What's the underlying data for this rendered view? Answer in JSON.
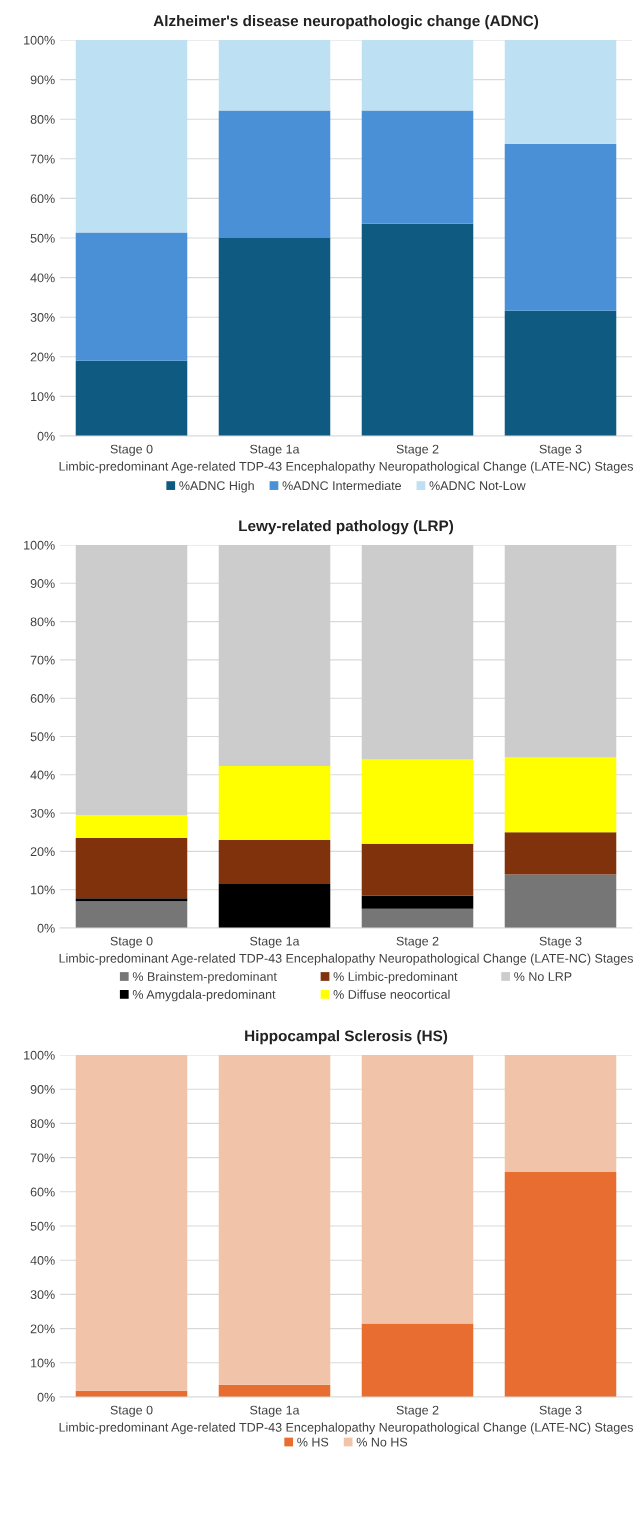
{
  "chart_data": [
    {
      "type": "bar",
      "stacked": true,
      "title": "Alzheimer's disease neuropathologic change (ADNC)",
      "xlabel": "Limbic-predominant Age-related TDP-43 Encephalopathy Neuropathological Change (LATE-NC) Stages",
      "categories": [
        "Stage 0",
        "Stage 1a",
        "Stage 2",
        "Stage 3"
      ],
      "series": [
        {
          "name": "%ADNC High",
          "color": "#0e5a80",
          "values": [
            19,
            50,
            53.6,
            31.6
          ]
        },
        {
          "name": "%ADNC Intermediate",
          "color": "#4a90d6",
          "values": [
            32.4,
            32.2,
            28.6,
            42.2
          ]
        },
        {
          "name": "%ADNC Not-Low",
          "color": "#bde0f2",
          "values": [
            48.6,
            17.8,
            17.8,
            26.2
          ]
        }
      ],
      "ylim": [
        0,
        100
      ],
      "yticks": [
        {
          "value": 0,
          "label": "0%"
        },
        {
          "value": 10,
          "label": "10%"
        },
        {
          "value": 20,
          "label": "20%"
        },
        {
          "value": 30,
          "label": "30%"
        },
        {
          "value": 40,
          "label": "40%"
        },
        {
          "value": 50,
          "label": "50%"
        },
        {
          "value": 60,
          "label": "60%"
        },
        {
          "value": 70,
          "label": "70%"
        },
        {
          "value": 80,
          "label": "80%"
        },
        {
          "value": 90,
          "label": "90%"
        },
        {
          "value": 100,
          "label": "100%"
        }
      ],
      "grid": "y",
      "legend": "bottom"
    },
    {
      "type": "bar",
      "stacked": true,
      "title": "Lewy-related pathology (LRP)",
      "xlabel": "Limbic-predominant Age-related TDP-43 Encephalopathy Neuropathological Change (LATE-NC) Stages",
      "categories": [
        "Stage 0",
        "Stage 1a",
        "Stage 2",
        "Stage 3"
      ],
      "series": [
        {
          "name": "% Brainstem-predominant",
          "color": "#767676",
          "values": [
            7,
            0,
            5,
            14
          ]
        },
        {
          "name": "% Amygdala-predominant",
          "color": "#000000",
          "values": [
            0.8,
            11.5,
            3.5,
            0
          ]
        },
        {
          "name": "% Limbic-predominant",
          "color": "#7f320c",
          "values": [
            15.7,
            11.5,
            13.5,
            11
          ]
        },
        {
          "name": "% Diffuse neocortical",
          "color": "#ffff00",
          "values": [
            6,
            19.3,
            22,
            19.5
          ]
        },
        {
          "name": "% No LRP",
          "color": "#cccccc",
          "values": [
            70.5,
            57.7,
            56,
            55.5
          ]
        }
      ],
      "ylim": [
        0,
        100
      ],
      "yticks": [
        {
          "value": 0,
          "label": "0%"
        },
        {
          "value": 10,
          "label": "10%"
        },
        {
          "value": 20,
          "label": "20%"
        },
        {
          "value": 30,
          "label": "30%"
        },
        {
          "value": 40,
          "label": "40%"
        },
        {
          "value": 50,
          "label": "50%"
        },
        {
          "value": 60,
          "label": "60%"
        },
        {
          "value": 70,
          "label": "70%"
        },
        {
          "value": 80,
          "label": "80%"
        },
        {
          "value": 90,
          "label": "90%"
        },
        {
          "value": 100,
          "label": "100%"
        }
      ],
      "grid": "y",
      "legend": "bottom"
    },
    {
      "type": "bar",
      "stacked": true,
      "title": "Hippocampal Sclerosis (HS)",
      "xlabel": "Limbic-predominant Age-related TDP-43 Encephalopathy Neuropathological Change (LATE-NC) Stages",
      "categories": [
        "Stage 0",
        "Stage 1a",
        "Stage 2",
        "Stage 3"
      ],
      "series": [
        {
          "name": "% HS",
          "color": "#e76e30",
          "values": [
            1.8,
            3.6,
            21.5,
            65.8
          ]
        },
        {
          "name": "% No HS",
          "color": "#f1c3a8",
          "values": [
            98.2,
            96.4,
            78.5,
            34.2
          ]
        }
      ],
      "ylim": [
        0,
        100
      ],
      "yticks": [
        {
          "value": 0,
          "label": "0%"
        },
        {
          "value": 10,
          "label": "10%"
        },
        {
          "value": 20,
          "label": "20%"
        },
        {
          "value": 30,
          "label": "30%"
        },
        {
          "value": 40,
          "label": "40%"
        },
        {
          "value": 50,
          "label": "50%"
        },
        {
          "value": 60,
          "label": "60%"
        },
        {
          "value": 70,
          "label": "70%"
        },
        {
          "value": 80,
          "label": "80%"
        },
        {
          "value": 90,
          "label": "90%"
        },
        {
          "value": 100,
          "label": "100%"
        }
      ],
      "grid": "y",
      "legend": "bottom"
    }
  ]
}
